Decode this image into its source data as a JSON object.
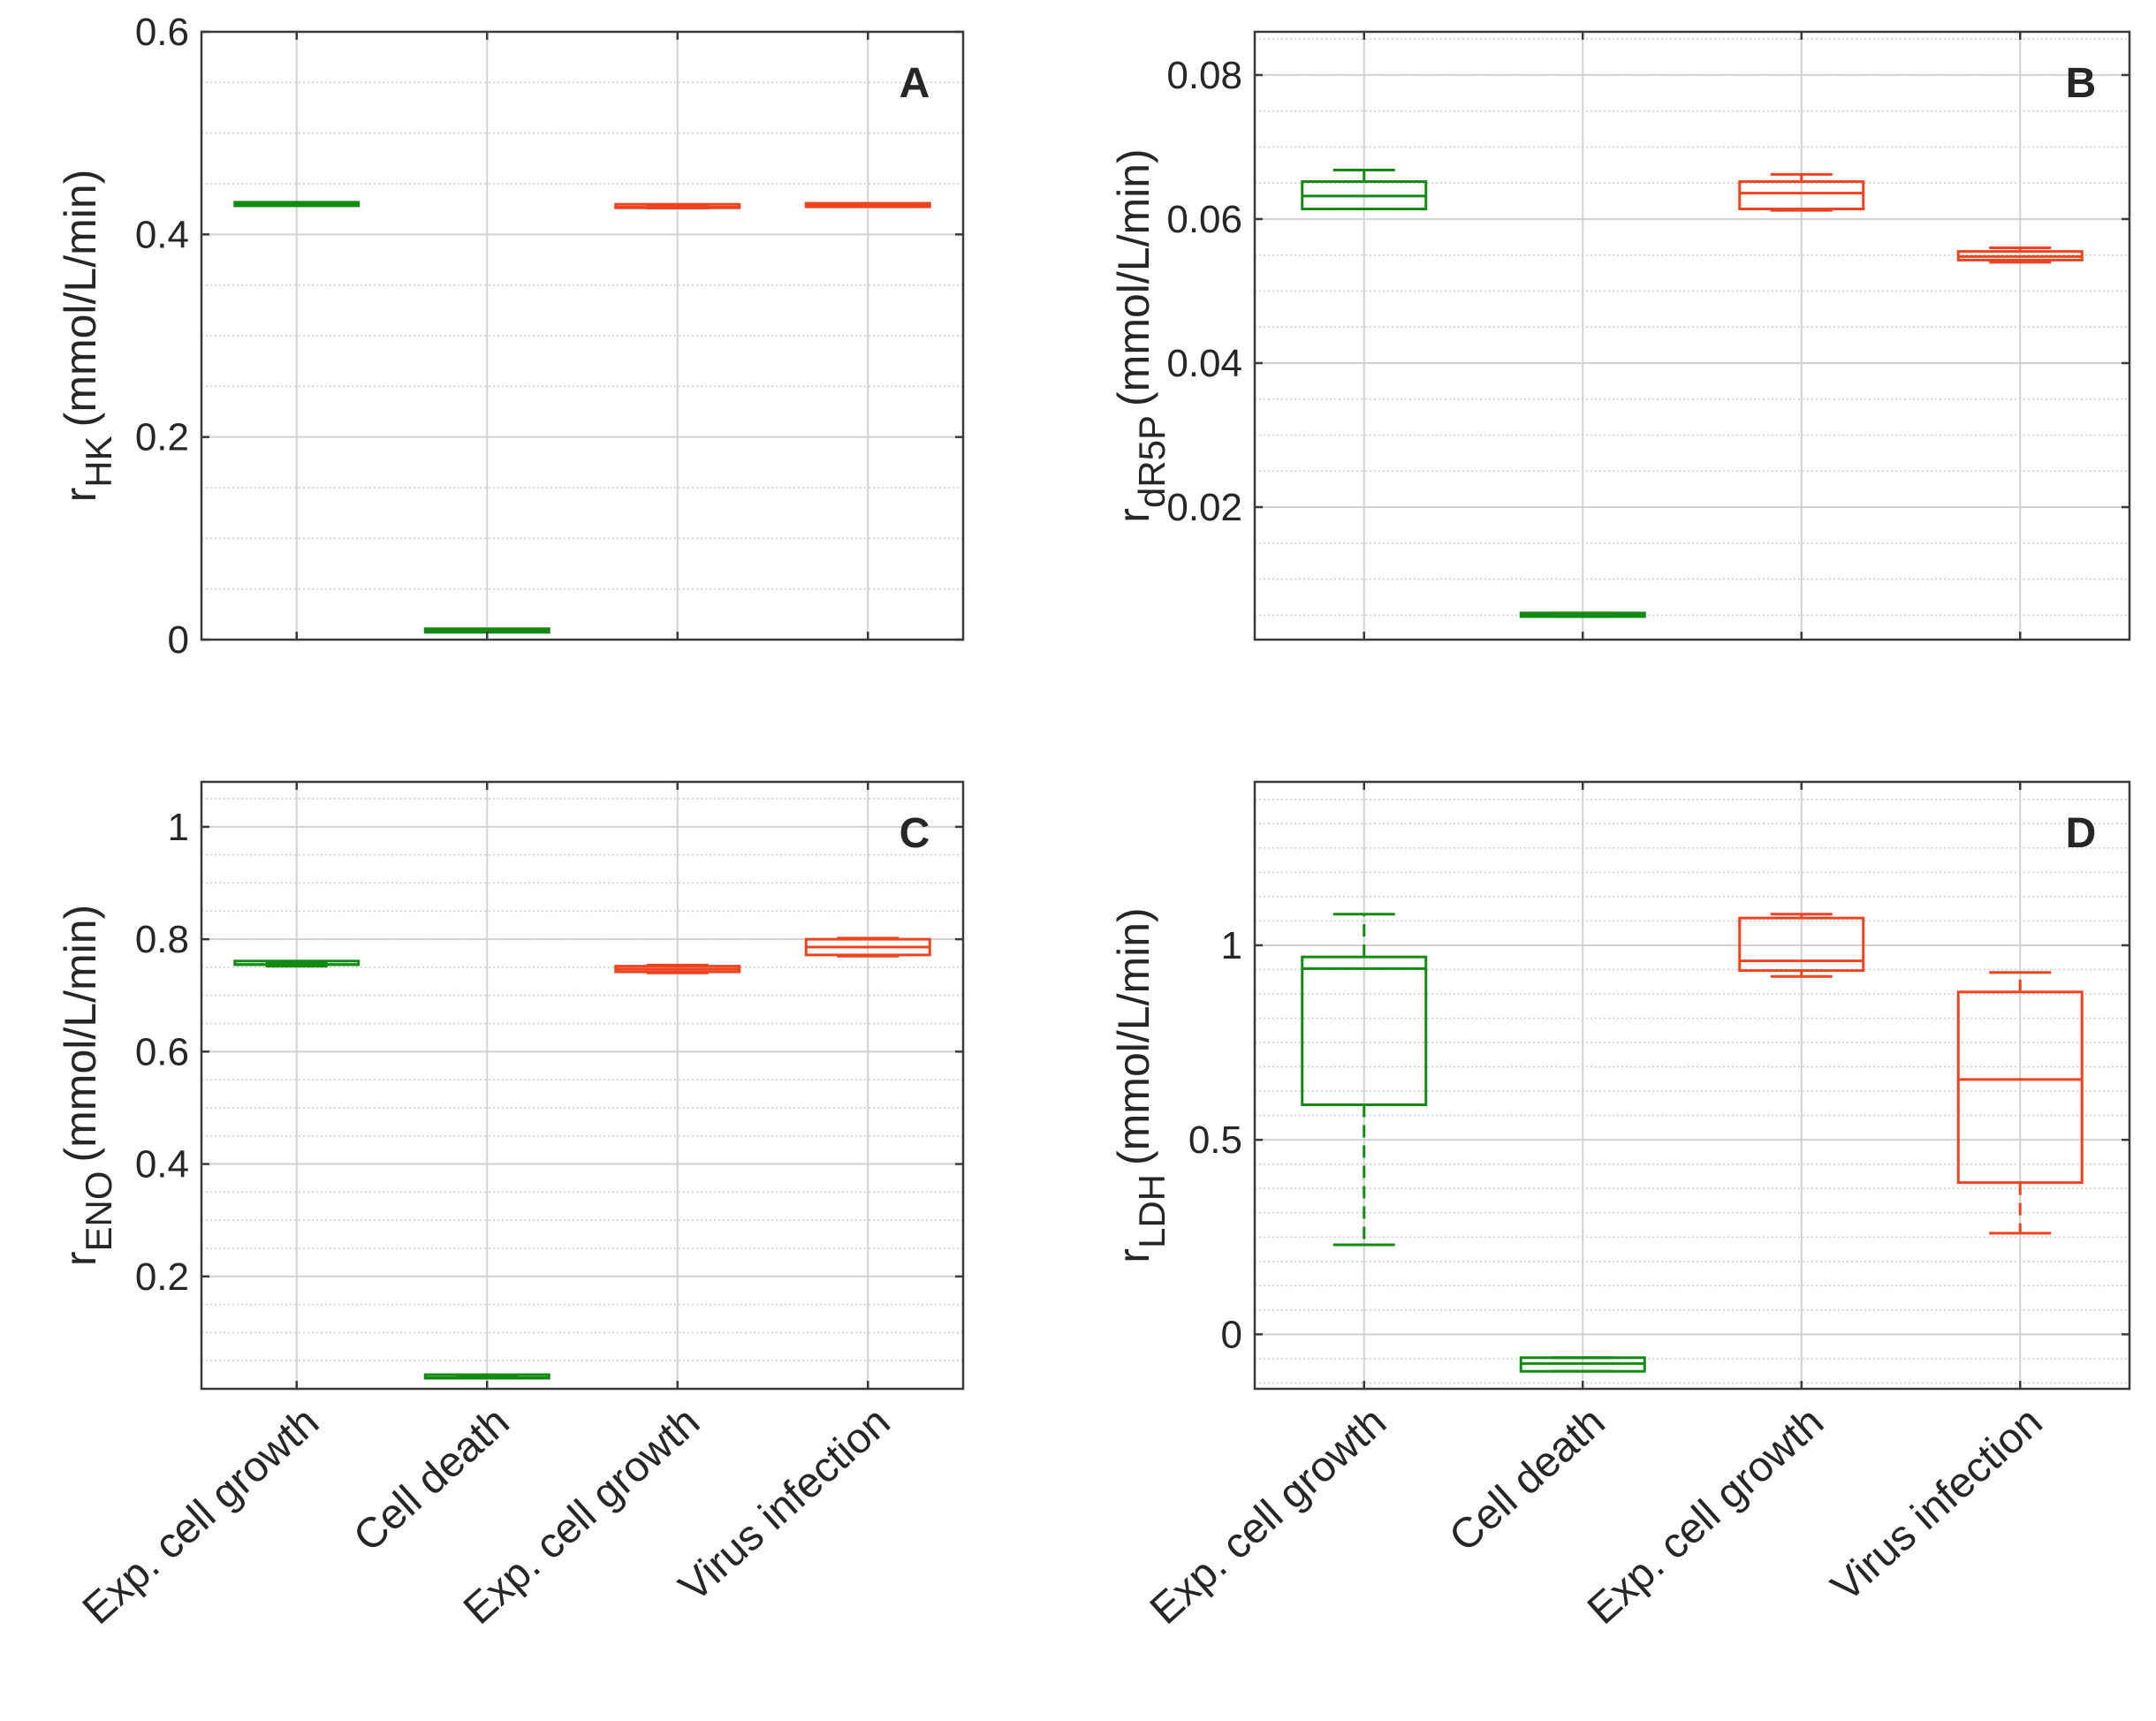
{
  "colors": {
    "green": "#138a13",
    "red": "#f0431f",
    "axis": "#3a3a3a",
    "grid_major": "#d2d2d2",
    "grid_minor": "#cfcfcf",
    "text": "#262626"
  },
  "chart_data": [
    {
      "type": "box",
      "panel_label": "A",
      "ylabel_main": "r",
      "ylabel_sub": "HK",
      "ylabel_unit": "(mmol/L/min)",
      "categories": [
        "Exp. cell growth",
        "Cell death",
        "Exp. cell growth",
        "Virus infection"
      ],
      "ylim": [
        0,
        0.6
      ],
      "yticks": [
        0,
        0.2,
        0.4,
        0.6
      ],
      "ytick_labels": [
        "0",
        "0.2",
        "0.4",
        "0.6"
      ],
      "minor_step": 0.05,
      "grid": true,
      "boxes": [
        {
          "min": 0.43,
          "q1": 0.43,
          "median": 0.43,
          "q3": 0.43,
          "max": 0.43,
          "color": "green"
        },
        {
          "min": 0.009,
          "q1": 0.009,
          "median": 0.009,
          "q3": 0.009,
          "max": 0.009,
          "color": "green"
        },
        {
          "min": 0.426,
          "q1": 0.426,
          "median": 0.427,
          "q3": 0.428,
          "max": 0.428,
          "color": "red"
        },
        {
          "min": 0.429,
          "q1": 0.429,
          "median": 0.429,
          "q3": 0.429,
          "max": 0.429,
          "color": "red"
        }
      ]
    },
    {
      "type": "box",
      "panel_label": "B",
      "ylabel_main": "r",
      "ylabel_sub": "dR5P",
      "ylabel_unit": "(mmol/L/min)",
      "categories": [
        "Exp. cell growth",
        "Cell death",
        "Exp. cell growth",
        "Virus infection"
      ],
      "ylim": [
        0.0016,
        0.086
      ],
      "yticks": [
        0.02,
        0.04,
        0.06,
        0.08
      ],
      "ytick_labels": [
        "0.02",
        "0.04",
        "0.06",
        "0.08"
      ],
      "minor_step": 0.005,
      "grid": true,
      "boxes": [
        {
          "min": 0.0614,
          "q1": 0.0614,
          "median": 0.0632,
          "q3": 0.0652,
          "max": 0.0668,
          "color": "green"
        },
        {
          "min": 0.0048,
          "q1": 0.0048,
          "median": 0.005,
          "q3": 0.0053,
          "max": 0.0053,
          "color": "green"
        },
        {
          "min": 0.0612,
          "q1": 0.0614,
          "median": 0.0636,
          "q3": 0.0652,
          "max": 0.0662,
          "color": "red"
        },
        {
          "min": 0.054,
          "q1": 0.0543,
          "median": 0.0548,
          "q3": 0.0555,
          "max": 0.056,
          "color": "red"
        }
      ]
    },
    {
      "type": "box",
      "panel_label": "C",
      "ylabel_main": "r",
      "ylabel_sub": "ENO",
      "ylabel_unit": "(mmol/L/min)",
      "categories": [
        "Exp. cell growth",
        "Cell death",
        "Exp. cell growth",
        "Virus infection"
      ],
      "ylim": [
        0,
        1.08
      ],
      "yticks": [
        0.2,
        0.4,
        0.6,
        0.8,
        1
      ],
      "ytick_labels": [
        "0.2",
        "0.4",
        "0.6",
        "0.8",
        "1"
      ],
      "minor_step": 0.05,
      "grid": true,
      "boxes": [
        {
          "min": 0.752,
          "q1": 0.752,
          "median": 0.755,
          "q3": 0.758,
          "max": 0.758,
          "color": "green"
        },
        {
          "min": 0.019,
          "q1": 0.019,
          "median": 0.02,
          "q3": 0.022,
          "max": 0.022,
          "color": "green"
        },
        {
          "min": 0.74,
          "q1": 0.742,
          "median": 0.747,
          "q3": 0.752,
          "max": 0.754,
          "color": "red"
        },
        {
          "min": 0.77,
          "q1": 0.772,
          "median": 0.786,
          "q3": 0.8,
          "max": 0.802,
          "color": "red"
        }
      ]
    },
    {
      "type": "box",
      "panel_label": "D",
      "ylabel_main": "r",
      "ylabel_sub": "LDH",
      "ylabel_unit": "(mmol/L/min)",
      "categories": [
        "Exp. cell growth",
        "Cell death",
        "Exp. cell growth",
        "Virus infection"
      ],
      "ylim": [
        -0.14,
        1.42
      ],
      "yticks": [
        0,
        0.5,
        1
      ],
      "ytick_labels": [
        "0",
        "0.5",
        "1"
      ],
      "minor_step": 0.0625,
      "grid": true,
      "boxes": [
        {
          "min": 0.23,
          "q1": 0.59,
          "median": 0.94,
          "q3": 0.97,
          "max": 1.08,
          "color": "green"
        },
        {
          "min": -0.095,
          "q1": -0.095,
          "median": -0.075,
          "q3": -0.06,
          "max": -0.06,
          "color": "green"
        },
        {
          "min": 0.92,
          "q1": 0.935,
          "median": 0.96,
          "q3": 1.07,
          "max": 1.08,
          "color": "red"
        },
        {
          "min": 0.26,
          "q1": 0.39,
          "median": 0.655,
          "q3": 0.88,
          "max": 0.93,
          "color": "red"
        }
      ]
    }
  ]
}
